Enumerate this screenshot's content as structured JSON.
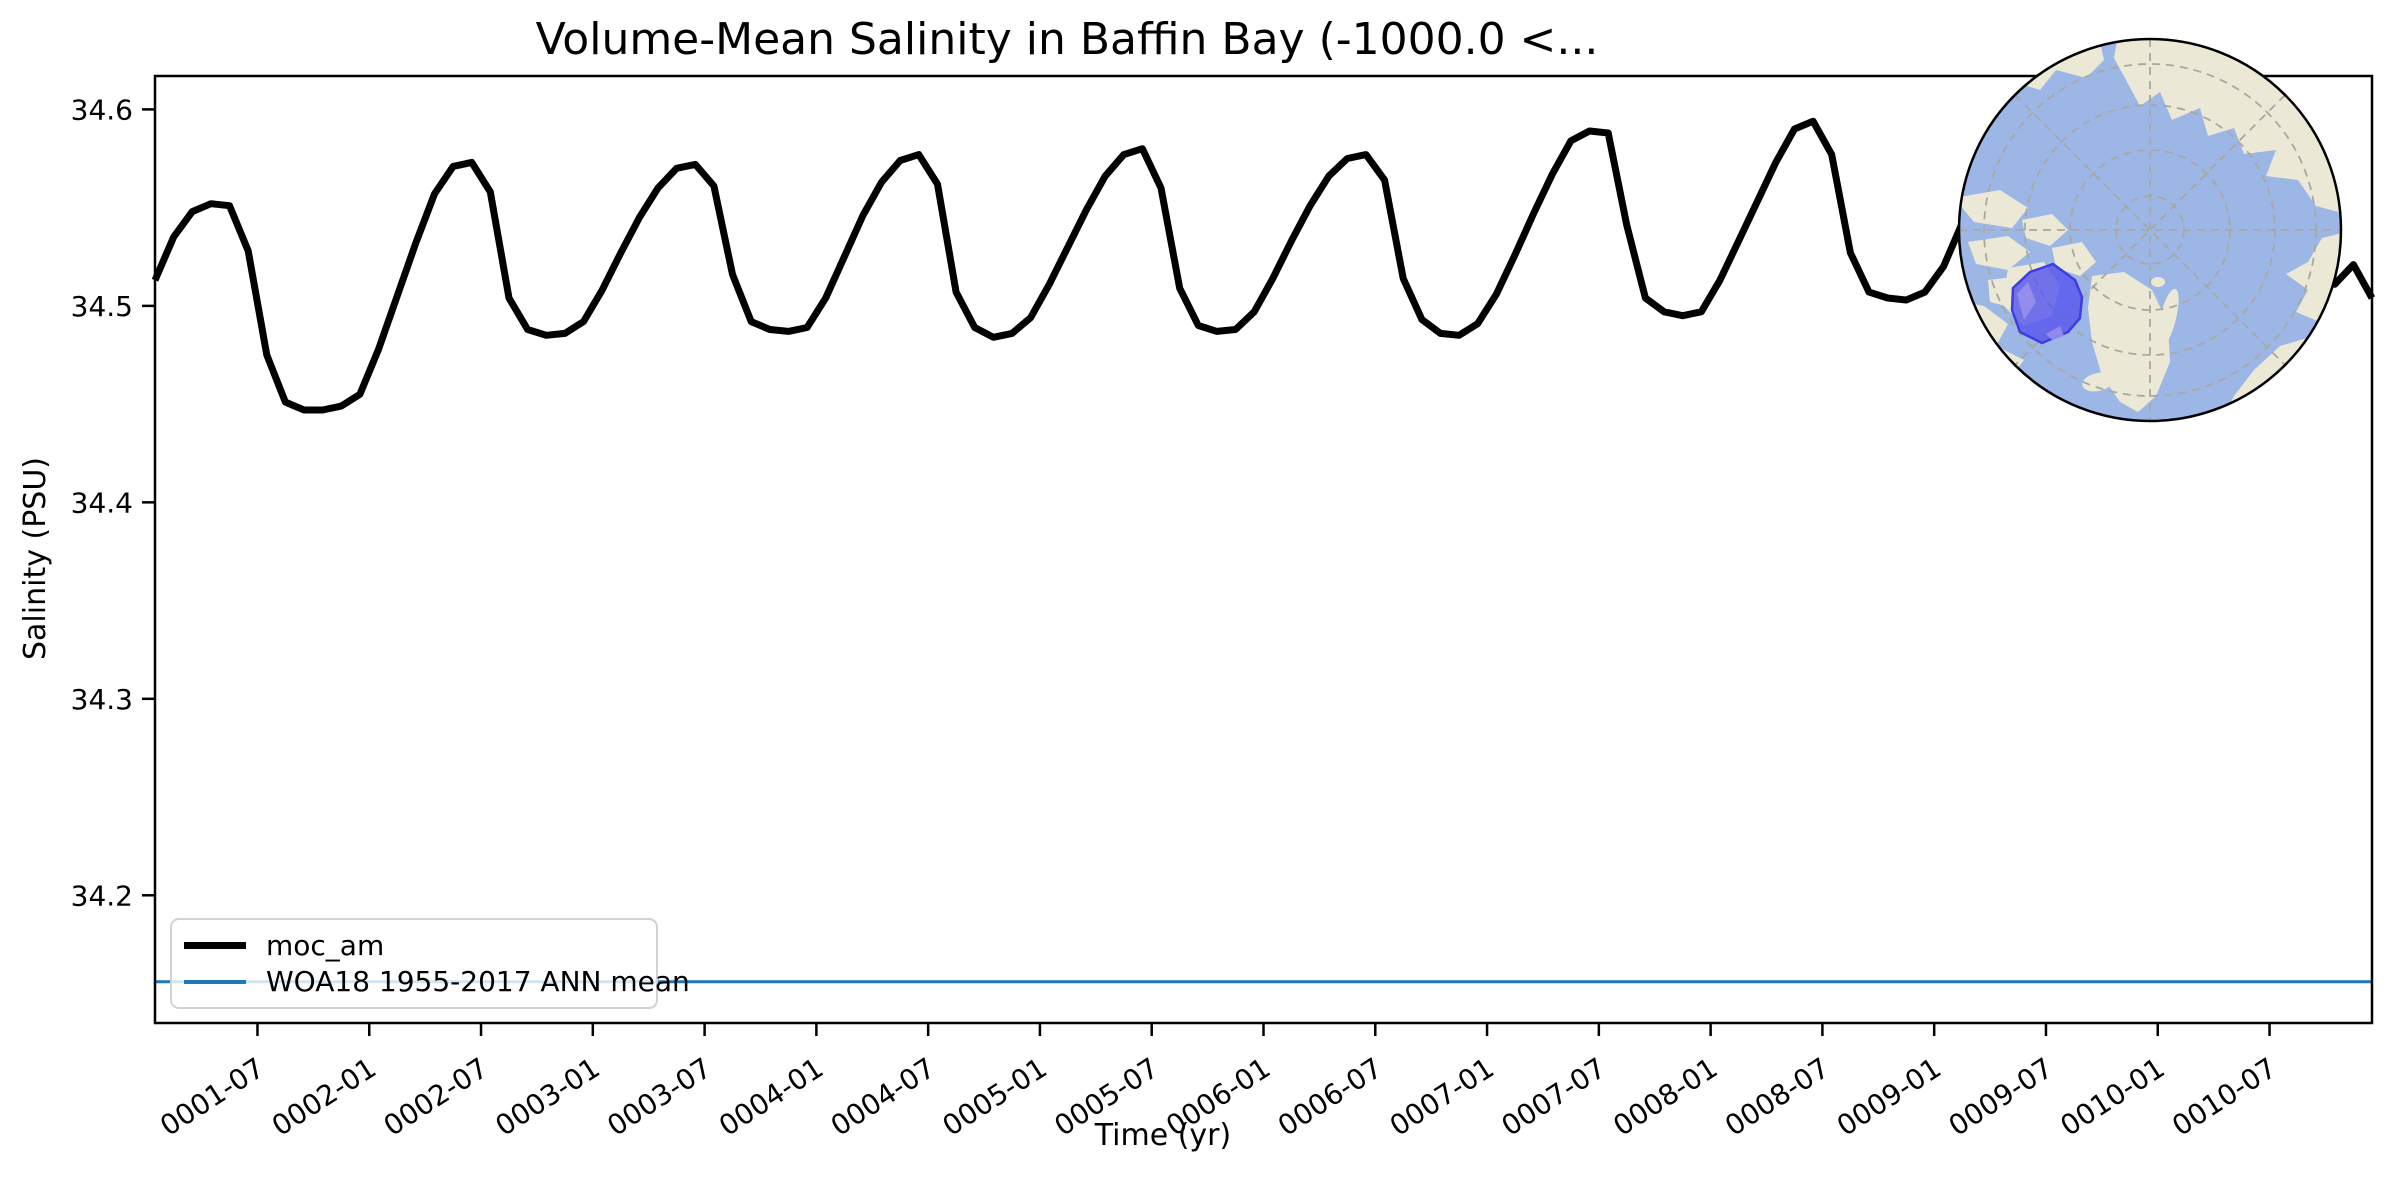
{
  "chart_data": {
    "type": "line",
    "title": "Volume-Mean Salinity in Baffin Bay (-1000.0 <...",
    "xlabel": "Time (yr)",
    "ylabel": "Salinity (PSU)",
    "x_start": "0001-01",
    "x_cadence": "monthly",
    "x_tick_labels": [
      "0001-07",
      "0002-01",
      "0002-07",
      "0003-01",
      "0003-07",
      "0004-01",
      "0004-07",
      "0005-01",
      "0005-07",
      "0006-01",
      "0006-07",
      "0007-01",
      "0007-07",
      "0008-01",
      "0008-07",
      "0009-01",
      "0009-07",
      "0010-01",
      "0010-07"
    ],
    "y_ticks": [
      34.2,
      34.3,
      34.4,
      34.5,
      34.6
    ],
    "ylim": [
      34.135,
      34.617
    ],
    "grid": false,
    "legend_position": "lower left",
    "series": [
      {
        "name": "moc_am",
        "type": "line",
        "color": "#000000",
        "values": [
          34.513,
          34.535,
          34.548,
          34.552,
          34.551,
          34.528,
          34.475,
          34.451,
          34.447,
          34.447,
          34.449,
          34.455,
          34.478,
          34.505,
          34.532,
          34.557,
          34.571,
          34.573,
          34.558,
          34.504,
          34.488,
          34.485,
          34.486,
          34.492,
          34.508,
          34.527,
          34.545,
          34.56,
          34.57,
          34.572,
          34.561,
          34.516,
          34.492,
          34.488,
          34.487,
          34.489,
          34.504,
          34.525,
          34.546,
          34.563,
          34.574,
          34.577,
          34.562,
          34.507,
          34.489,
          34.484,
          34.486,
          34.494,
          34.511,
          34.53,
          34.549,
          34.566,
          34.577,
          34.58,
          34.56,
          34.509,
          34.49,
          34.487,
          34.488,
          34.497,
          34.514,
          34.533,
          34.551,
          34.566,
          34.575,
          34.577,
          34.564,
          34.514,
          34.493,
          34.486,
          34.485,
          34.491,
          34.506,
          34.526,
          34.547,
          34.567,
          34.584,
          34.589,
          34.588,
          34.541,
          34.504,
          34.497,
          34.495,
          34.497,
          34.513,
          34.533,
          34.553,
          34.573,
          34.59,
          34.594,
          34.577,
          34.527,
          34.507,
          34.504,
          34.503,
          34.507,
          34.52,
          34.542,
          34.562,
          34.578,
          34.59,
          34.596,
          34.589,
          34.543,
          34.512,
          34.505,
          34.504,
          34.509,
          34.521,
          34.541,
          34.559,
          34.576,
          34.591,
          34.599,
          34.59,
          34.547,
          34.519,
          34.511,
          34.521,
          34.504
        ]
      },
      {
        "name": "WOA18 1955-2017 ANN mean",
        "type": "hline",
        "color": "#1f77b4",
        "value": 34.156
      }
    ],
    "inset_map": {
      "description": "North-polar orthographic globe inset highlighting the Baffin Bay region",
      "region_label": "Baffin Bay",
      "colors": {
        "ocean": "#9cb6e6",
        "land": "#ebe9d6",
        "region_fill": "#5757ee",
        "region_patch": "#9a92ec",
        "region_border": "#3e3ee0",
        "graticule": "#a8a8a0",
        "outline": "#000000"
      }
    }
  }
}
